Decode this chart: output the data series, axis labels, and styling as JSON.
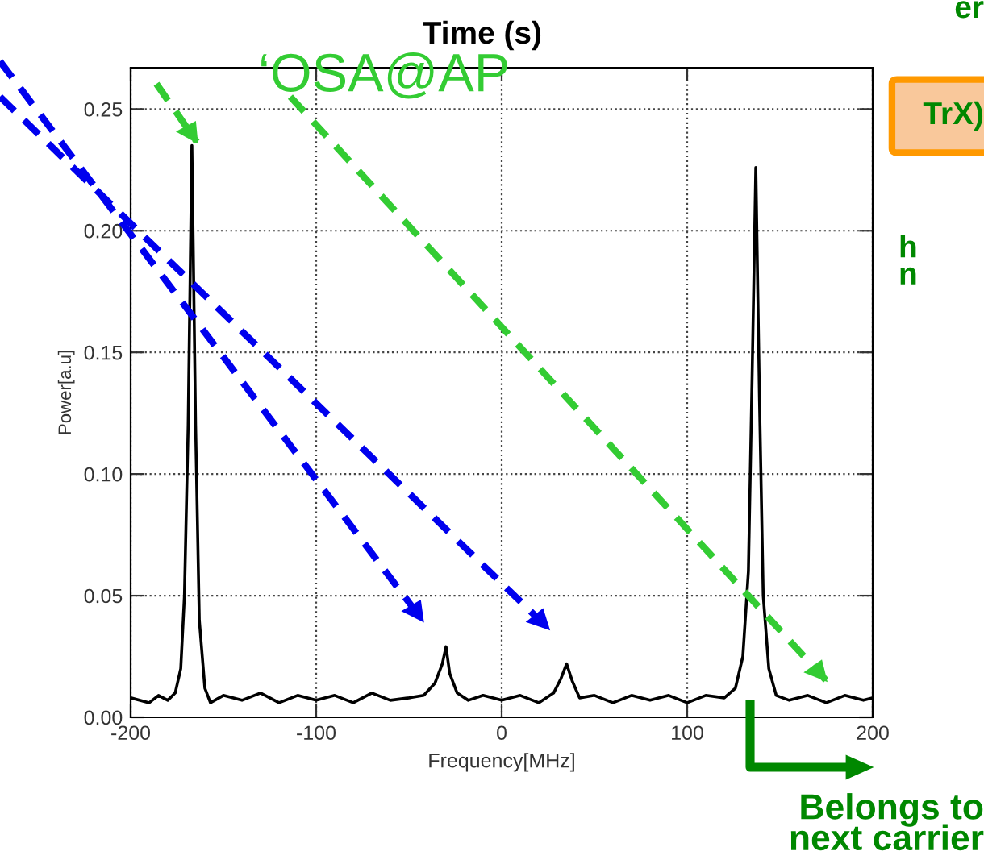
{
  "chart_data": {
    "type": "line",
    "title": "Time (s)",
    "xlabel": "Frequency[MHz]",
    "ylabel": "Power[a.u]",
    "x": [
      -200,
      -190,
      -185,
      -180,
      -176,
      -173,
      -171,
      -169,
      -167,
      -165,
      -163,
      -160,
      -157,
      -150,
      -140,
      -130,
      -120,
      -110,
      -100,
      -90,
      -80,
      -70,
      -60,
      -50,
      -42,
      -36,
      -32,
      -30,
      -28,
      -24,
      -18,
      -10,
      0,
      10,
      20,
      28,
      32,
      35,
      38,
      42,
      50,
      60,
      70,
      80,
      90,
      100,
      110,
      120,
      126,
      130,
      133,
      135,
      137,
      139,
      141,
      144,
      148,
      155,
      165,
      175,
      185,
      195,
      200
    ],
    "series": [
      {
        "color": "#000000",
        "values": [
          0.008,
          0.006,
          0.009,
          0.007,
          0.01,
          0.02,
          0.05,
          0.12,
          0.235,
          0.12,
          0.04,
          0.012,
          0.006,
          0.009,
          0.007,
          0.01,
          0.006,
          0.009,
          0.007,
          0.009,
          0.006,
          0.01,
          0.007,
          0.008,
          0.009,
          0.014,
          0.022,
          0.029,
          0.018,
          0.01,
          0.007,
          0.009,
          0.007,
          0.009,
          0.006,
          0.01,
          0.016,
          0.022,
          0.015,
          0.008,
          0.009,
          0.006,
          0.009,
          0.007,
          0.009,
          0.006,
          0.009,
          0.008,
          0.012,
          0.025,
          0.06,
          0.14,
          0.226,
          0.13,
          0.05,
          0.02,
          0.009,
          0.007,
          0.009,
          0.006,
          0.009,
          0.007,
          0.008
        ]
      }
    ],
    "xlim": [
      -200,
      200
    ],
    "xticks": [
      -200,
      -100,
      0,
      100,
      200
    ],
    "ylim": [
      0,
      0.267
    ],
    "yticks": [
      {
        "value": 0,
        "label": "0.00"
      },
      {
        "value": 0.05,
        "label": "0.05"
      },
      {
        "value": 0.1,
        "label": "0.10"
      },
      {
        "value": 0.15,
        "label": "0.15"
      },
      {
        "value": 0.2,
        "label": "0.20"
      },
      {
        "value": 0.25,
        "label": "0.25"
      }
    ],
    "grid": true,
    "legend": false,
    "marker": "none",
    "line_style": "solid",
    "annotations": [
      "‘OSA@AP",
      "Belongs to\nnext carrier",
      "er",
      "TrX)",
      "h\nn"
    ]
  }
}
